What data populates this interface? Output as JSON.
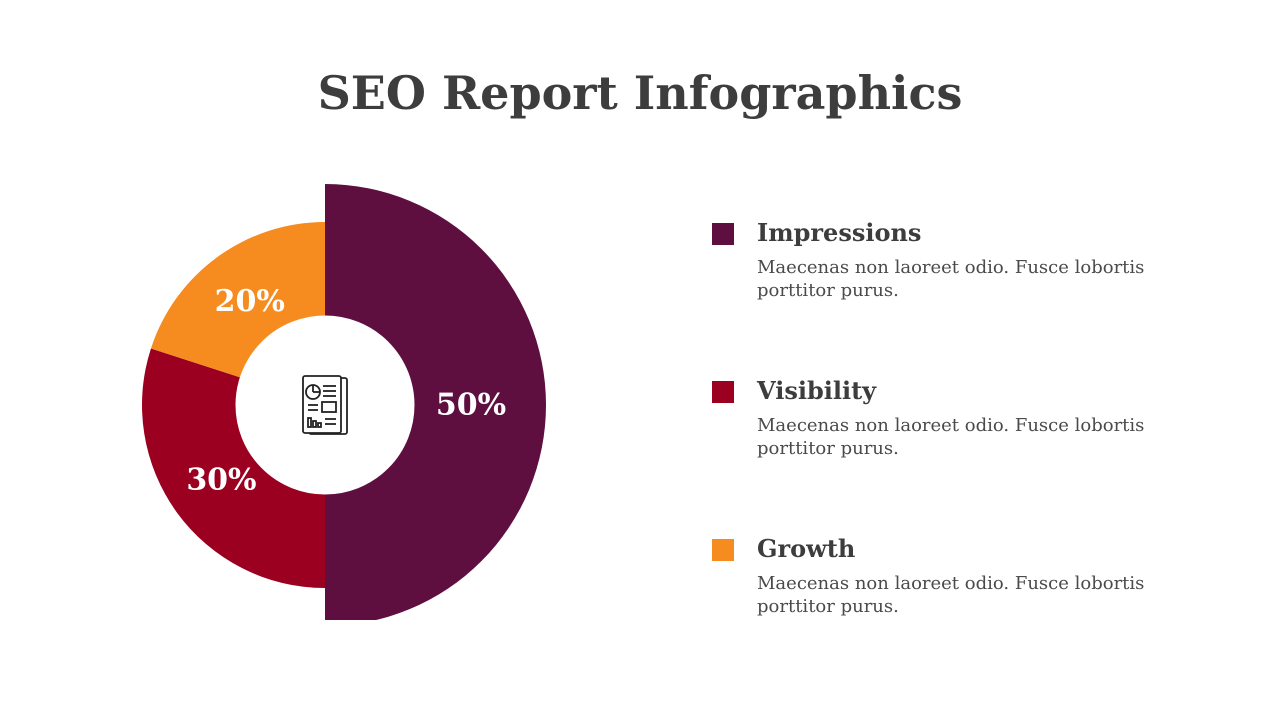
{
  "title": "SEO Report Infographics",
  "center_icon": "report-document-icon",
  "chart_data": {
    "type": "pie",
    "style": "donut",
    "categories": [
      "Impressions",
      "Visibility",
      "Growth"
    ],
    "values": [
      50,
      30,
      20
    ],
    "value_labels": [
      "50%",
      "30%",
      "20%"
    ],
    "colors": [
      "#5e0f40",
      "#9b0020",
      "#f68c20"
    ],
    "emphasized": "Impressions",
    "legend": "right"
  },
  "legend": [
    {
      "label": "Impressions",
      "description": "Maecenas non laoreet odio. Fusce lobortis porttitor purus.",
      "color": "#5e0f40"
    },
    {
      "label": "Visibility",
      "description": "Maecenas non laoreet odio. Fusce lobortis porttitor purus.",
      "color": "#9b0020"
    },
    {
      "label": "Growth",
      "description": "Maecenas non laoreet odio. Fusce lobortis porttitor purus.",
      "color": "#f68c20"
    }
  ]
}
